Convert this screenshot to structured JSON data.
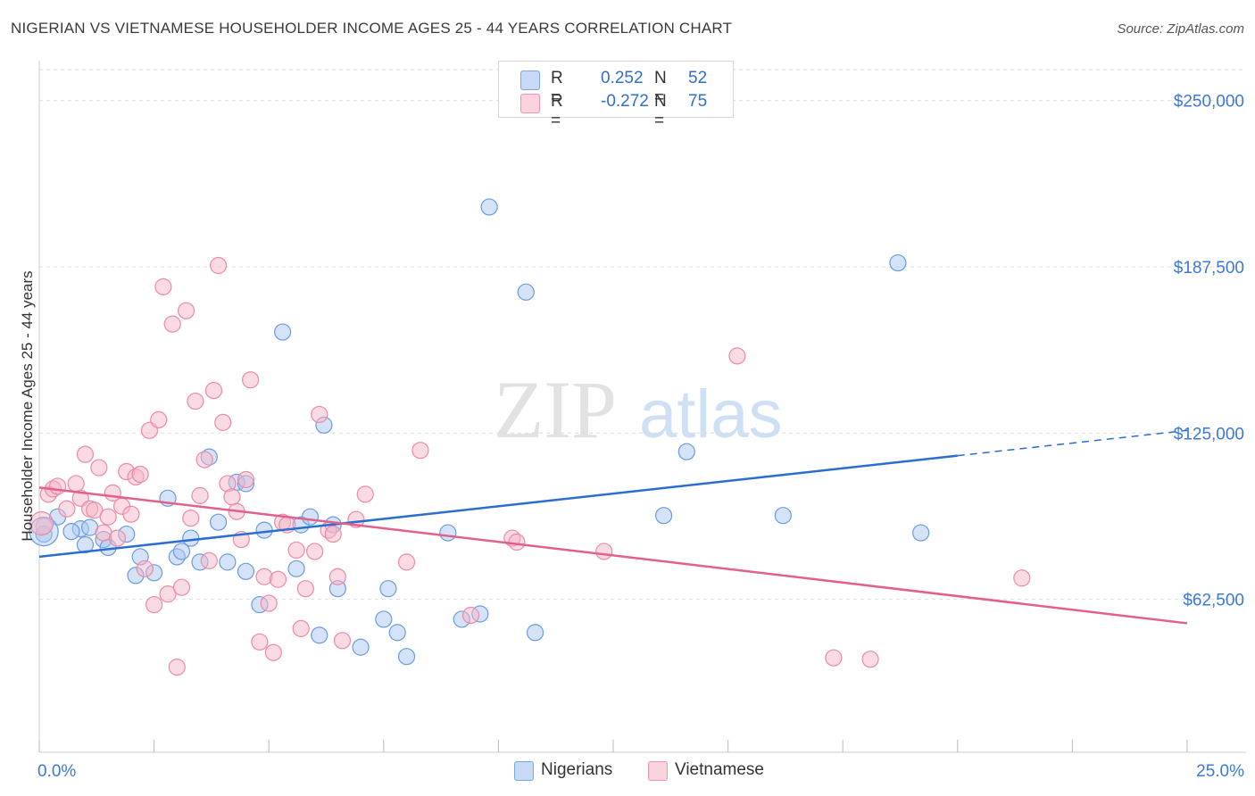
{
  "title": "NIGERIAN VS VIETNAMESE HOUSEHOLDER INCOME AGES 25 - 44 YEARS CORRELATION CHART",
  "source": "Source: ZipAtlas.com",
  "watermark": {
    "zip": "ZIP",
    "atlas": "atlas"
  },
  "legend": {
    "rows": [
      {
        "r_label": "R =",
        "r_value": "0.252",
        "n_label": "N =",
        "n_value": "52",
        "color": "#a9c7f0"
      },
      {
        "r_label": "R =",
        "r_value": "-0.272",
        "n_label": "N =",
        "n_value": "75",
        "color": "#f6b6c8"
      }
    ]
  },
  "bottom_legend": [
    {
      "label": "Nigerians",
      "color": "#a9c7f0"
    },
    {
      "label": "Vietnamese",
      "color": "#f6b6c8"
    }
  ],
  "chart_data": {
    "type": "scatter",
    "title": "NIGERIAN VS VIETNAMESE HOUSEHOLDER INCOME AGES 25 - 44 YEARS CORRELATION CHART",
    "xlabel": "",
    "ylabel": "Householder Income Ages 25 - 44 years",
    "xlim": [
      0,
      25
    ],
    "ylim": [
      5000,
      265000
    ],
    "x_tick_labels": [
      {
        "value": 0,
        "label": "0.0%"
      },
      {
        "value": 25,
        "label": "25.0%"
      }
    ],
    "y_ticks": [
      {
        "value": 250000,
        "label": "$250,000"
      },
      {
        "value": 187500,
        "label": "$187,500"
      },
      {
        "value": 125000,
        "label": "$125,000"
      },
      {
        "value": 62500,
        "label": "$62,500"
      }
    ],
    "grid": "horizontal dashed",
    "series": [
      {
        "name": "Nigerians",
        "color": "#a9c7f0",
        "stroke": "#6b9be0",
        "line_color": "#2a6fd0",
        "trend": {
          "x0": 0,
          "y0": 78500,
          "x1": 20,
          "y1": 116500,
          "dash_to_x": 25,
          "dash_to_y": 126000
        },
        "points": [
          [
            0.1,
            87000
          ],
          [
            0.4,
            93500
          ],
          [
            0.9,
            89000
          ],
          [
            1.1,
            89500
          ],
          [
            0.7,
            88000
          ],
          [
            1.4,
            85000
          ],
          [
            1.0,
            83000
          ],
          [
            1.9,
            87000
          ],
          [
            1.5,
            82000
          ],
          [
            2.2,
            78500
          ],
          [
            2.5,
            72500
          ],
          [
            2.1,
            71500
          ],
          [
            2.8,
            100500
          ],
          [
            3.0,
            78500
          ],
          [
            3.1,
            80500
          ],
          [
            3.3,
            85500
          ],
          [
            3.5,
            76500
          ],
          [
            3.7,
            116000
          ],
          [
            3.9,
            91500
          ],
          [
            4.1,
            76500
          ],
          [
            4.3,
            106500
          ],
          [
            4.5,
            106000
          ],
          [
            4.5,
            73000
          ],
          [
            4.8,
            60500
          ],
          [
            4.9,
            88500
          ],
          [
            5.3,
            163000
          ],
          [
            5.6,
            74000
          ],
          [
            5.7,
            90500
          ],
          [
            5.9,
            93500
          ],
          [
            6.1,
            49000
          ],
          [
            6.2,
            128000
          ],
          [
            6.4,
            90500
          ],
          [
            6.5,
            66500
          ],
          [
            7.0,
            44500
          ],
          [
            7.5,
            55000
          ],
          [
            7.6,
            66500
          ],
          [
            7.8,
            50000
          ],
          [
            8.0,
            41000
          ],
          [
            8.9,
            87500
          ],
          [
            9.2,
            55000
          ],
          [
            9.6,
            57000
          ],
          [
            9.8,
            210000
          ],
          [
            10.6,
            178000
          ],
          [
            10.8,
            50000
          ],
          [
            13.6,
            94000
          ],
          [
            14.1,
            118000
          ],
          [
            16.2,
            94000
          ],
          [
            18.7,
            189000
          ],
          [
            19.2,
            87500
          ]
        ]
      },
      {
        "name": "Vietnamese",
        "color": "#f6b6c8",
        "stroke": "#ec8aa7",
        "line_color": "#e2608a",
        "trend": {
          "x0": 0,
          "y0": 104500,
          "x1": 25,
          "y1": 53500
        },
        "points": [
          [
            0.1,
            90000
          ],
          [
            0.2,
            102000
          ],
          [
            0.3,
            104000
          ],
          [
            0.4,
            105000
          ],
          [
            0.6,
            96500
          ],
          [
            0.8,
            106000
          ],
          [
            0.9,
            100500
          ],
          [
            1.0,
            117000
          ],
          [
            1.1,
            96500
          ],
          [
            1.2,
            96000
          ],
          [
            1.3,
            112000
          ],
          [
            1.4,
            87500
          ],
          [
            1.5,
            93500
          ],
          [
            1.6,
            102500
          ],
          [
            1.7,
            85500
          ],
          [
            1.8,
            97500
          ],
          [
            1.9,
            110500
          ],
          [
            2.0,
            94500
          ],
          [
            2.1,
            108500
          ],
          [
            2.2,
            109500
          ],
          [
            2.3,
            74000
          ],
          [
            2.4,
            126000
          ],
          [
            2.5,
            60500
          ],
          [
            2.6,
            130000
          ],
          [
            2.7,
            180000
          ],
          [
            2.8,
            64500
          ],
          [
            2.9,
            166000
          ],
          [
            3.0,
            37000
          ],
          [
            3.1,
            67000
          ],
          [
            3.2,
            171000
          ],
          [
            3.3,
            93000
          ],
          [
            3.4,
            137000
          ],
          [
            3.5,
            101500
          ],
          [
            3.6,
            115000
          ],
          [
            3.7,
            77000
          ],
          [
            3.8,
            141000
          ],
          [
            3.9,
            188000
          ],
          [
            4.0,
            129000
          ],
          [
            4.1,
            106000
          ],
          [
            4.2,
            101000
          ],
          [
            4.3,
            95500
          ],
          [
            4.4,
            85000
          ],
          [
            4.5,
            107500
          ],
          [
            4.6,
            145000
          ],
          [
            4.8,
            46500
          ],
          [
            4.9,
            71000
          ],
          [
            5.0,
            61000
          ],
          [
            5.1,
            42500
          ],
          [
            5.2,
            70000
          ],
          [
            5.3,
            91500
          ],
          [
            5.4,
            90500
          ],
          [
            5.6,
            81000
          ],
          [
            5.7,
            51500
          ],
          [
            5.8,
            66500
          ],
          [
            6.0,
            80500
          ],
          [
            6.1,
            132000
          ],
          [
            6.3,
            88500
          ],
          [
            6.4,
            87000
          ],
          [
            6.5,
            71000
          ],
          [
            6.6,
            47000
          ],
          [
            6.9,
            92500
          ],
          [
            7.1,
            102000
          ],
          [
            8.0,
            76500
          ],
          [
            8.3,
            118500
          ],
          [
            9.4,
            56500
          ],
          [
            10.3,
            85500
          ],
          [
            10.4,
            84000
          ],
          [
            12.3,
            80500
          ],
          [
            15.2,
            154000
          ],
          [
            17.3,
            40500
          ],
          [
            18.1,
            40000
          ],
          [
            21.4,
            70500
          ]
        ]
      }
    ]
  }
}
